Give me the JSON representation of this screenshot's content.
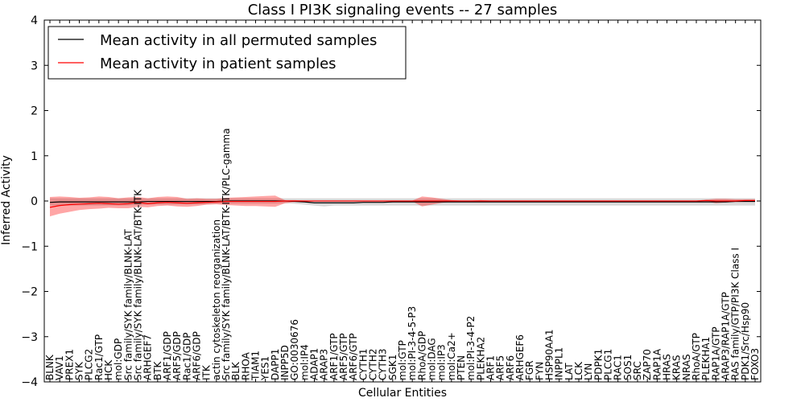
{
  "chart_data": {
    "type": "line",
    "title": "Class I PI3K signaling events -- 27 samples",
    "xlabel": "Cellular Entities",
    "ylabel": "Inferred Activity",
    "ylim": [
      -4,
      4
    ],
    "yticks": [
      -4,
      -3,
      -2,
      -1,
      0,
      1,
      2,
      3,
      4
    ],
    "ytick_labels": [
      "−4",
      "−3",
      "−2",
      "−1",
      "0",
      "1",
      "2",
      "3",
      "4"
    ],
    "legend_position": "top-left",
    "categories": [
      "BLNK",
      "VAV1",
      "PREX1",
      "SYK",
      "PLCG2",
      "Rac1/GTP",
      "HCK",
      "mol:GDP",
      "Src family/SYK family/BLNK-LAT",
      "Src family/SYK family/BLNK-LAT/BTK-ITK",
      "ARHGEF7",
      "BTK",
      "ARF1/GDP",
      "ARF5/GDP",
      "Rac1/GDP",
      "ARF6/GDP",
      "ITK",
      "actin cytoskeleton reorganization",
      "Src family/SYK family/BLNK-LAT/BTK-ITK/PLC-gamma",
      "BLK",
      "RHOA",
      "TIAM1",
      "YES1",
      "DAPP1",
      "INPP5D",
      "GO:0030676",
      "mol:IP4",
      "ADAP1",
      "ARAP3",
      "ARF1/GTP",
      "ARF5/GTP",
      "ARF6/GTP",
      "CYTH1",
      "CYTH2",
      "CYTH3",
      "SGK1",
      "mol:GTP",
      "mol:PI-3-4-5-P3",
      "RhoA/GDP",
      "mol:DAG",
      "mol:IP3",
      "mol:Ca2+",
      "PTEN",
      "mol:PI-3-4-P2",
      "PLEKHA2",
      "ARF1",
      "ARF5",
      "ARF6",
      "ARHGEF6",
      "FGR",
      "FYN",
      "HSP90AA1",
      "INPPL1",
      "LAT",
      "LCK",
      "LYN",
      "PDPK1",
      "PLCG1",
      "RAC1",
      "SOS1",
      "SRC",
      "ZAP70",
      "RAP1A",
      "HRAS",
      "KRAS",
      "NRAS",
      "RhoA/GTP",
      "PLEKHA1",
      "RAP1A/GTP",
      "ARAP3/RAP1A/GTP",
      "RAS family/GTP/PI3K Class I",
      "PDK1/Src/Hsp90",
      "FOXO3"
    ],
    "series": [
      {
        "name": "Mean activity in all permuted samples",
        "color": "#000000",
        "values": [
          -0.03,
          -0.02,
          -0.02,
          -0.02,
          -0.02,
          -0.02,
          -0.02,
          -0.02,
          -0.02,
          -0.02,
          -0.01,
          -0.01,
          -0.01,
          -0.01,
          -0.01,
          -0.01,
          -0.01,
          -0.01,
          0.0,
          0.0,
          0.0,
          0.0,
          0.0,
          0.0,
          0.0,
          -0.01,
          -0.02,
          -0.04,
          -0.04,
          -0.04,
          -0.04,
          -0.04,
          -0.03,
          -0.03,
          -0.03,
          -0.02,
          -0.02,
          -0.02,
          -0.02,
          -0.02,
          -0.02,
          -0.02,
          -0.02,
          -0.02,
          -0.02,
          -0.02,
          -0.02,
          -0.02,
          -0.02,
          -0.02,
          -0.02,
          -0.02,
          -0.02,
          -0.02,
          -0.02,
          -0.02,
          -0.02,
          -0.02,
          -0.02,
          -0.02,
          -0.02,
          -0.02,
          -0.02,
          -0.02,
          -0.02,
          -0.02,
          -0.02,
          -0.02,
          -0.02,
          -0.02,
          -0.01,
          -0.01,
          -0.01
        ],
        "band_lower": [
          -0.1,
          -0.1,
          -0.1,
          -0.1,
          -0.1,
          -0.1,
          -0.1,
          -0.1,
          -0.1,
          -0.09,
          -0.08,
          -0.08,
          -0.08,
          -0.08,
          -0.08,
          -0.08,
          -0.07,
          -0.06,
          -0.06,
          -0.06,
          -0.06,
          -0.06,
          -0.06,
          -0.06,
          -0.05,
          -0.06,
          -0.08,
          -0.1,
          -0.12,
          -0.1,
          -0.1,
          -0.1,
          -0.1,
          -0.1,
          -0.1,
          -0.1,
          -0.1,
          -0.1,
          -0.1,
          -0.1,
          -0.1,
          -0.1,
          -0.1,
          -0.1,
          -0.1,
          -0.1,
          -0.1,
          -0.1,
          -0.1,
          -0.1,
          -0.1,
          -0.1,
          -0.1,
          -0.1,
          -0.1,
          -0.1,
          -0.1,
          -0.1,
          -0.1,
          -0.1,
          -0.1,
          -0.1,
          -0.1,
          -0.1,
          -0.1,
          -0.1,
          -0.1,
          -0.1,
          -0.1,
          -0.1,
          -0.1,
          -0.1,
          -0.1
        ],
        "band_upper": [
          0.06,
          0.06,
          0.06,
          0.06,
          0.06,
          0.06,
          0.06,
          0.06,
          0.06,
          0.06,
          0.06,
          0.06,
          0.06,
          0.06,
          0.06,
          0.06,
          0.06,
          0.06,
          0.06,
          0.06,
          0.06,
          0.06,
          0.06,
          0.06,
          0.06,
          0.06,
          0.06,
          0.06,
          0.06,
          0.06,
          0.06,
          0.06,
          0.06,
          0.06,
          0.06,
          0.06,
          0.06,
          0.06,
          0.06,
          0.06,
          0.06,
          0.06,
          0.06,
          0.06,
          0.06,
          0.06,
          0.06,
          0.06,
          0.06,
          0.06,
          0.06,
          0.06,
          0.06,
          0.06,
          0.06,
          0.06,
          0.06,
          0.06,
          0.06,
          0.06,
          0.06,
          0.06,
          0.06,
          0.06,
          0.06,
          0.06,
          0.06,
          0.06,
          0.06,
          0.06,
          0.06,
          0.06,
          0.06
        ]
      },
      {
        "name": "Mean activity in patient samples",
        "color": "#ff0000",
        "values": [
          -0.14,
          -0.1,
          -0.08,
          -0.07,
          -0.06,
          -0.05,
          -0.06,
          -0.07,
          -0.06,
          -0.03,
          -0.06,
          -0.04,
          -0.03,
          -0.04,
          -0.05,
          -0.04,
          -0.03,
          -0.02,
          -0.01,
          -0.01,
          -0.01,
          -0.01,
          -0.01,
          -0.01,
          0.0,
          0.0,
          0.0,
          0.0,
          0.0,
          0.0,
          0.0,
          0.0,
          0.0,
          0.0,
          0.0,
          0.0,
          0.0,
          0.0,
          0.0,
          0.0,
          0.0,
          0.0,
          0.0,
          0.0,
          0.0,
          0.0,
          0.0,
          0.0,
          0.0,
          0.0,
          0.0,
          0.0,
          0.0,
          0.0,
          0.0,
          0.0,
          0.0,
          0.0,
          0.0,
          0.0,
          0.0,
          0.0,
          0.0,
          0.0,
          0.0,
          0.0,
          0.0,
          0.01,
          0.0,
          0.0,
          0.0,
          0.01,
          0.01
        ],
        "band_lower": [
          -0.34,
          -0.28,
          -0.24,
          -0.2,
          -0.18,
          -0.17,
          -0.15,
          -0.16,
          -0.16,
          -0.13,
          -0.14,
          -0.11,
          -0.1,
          -0.12,
          -0.13,
          -0.11,
          -0.08,
          -0.07,
          -0.09,
          -0.1,
          -0.11,
          -0.11,
          -0.12,
          -0.13,
          -0.05,
          -0.02,
          -0.02,
          -0.01,
          -0.01,
          -0.01,
          -0.01,
          -0.01,
          -0.01,
          -0.01,
          -0.01,
          -0.01,
          -0.01,
          -0.01,
          -0.12,
          -0.08,
          -0.04,
          -0.02,
          -0.01,
          -0.01,
          -0.01,
          -0.01,
          -0.01,
          -0.01,
          -0.01,
          -0.01,
          -0.01,
          -0.01,
          -0.01,
          -0.01,
          -0.01,
          -0.01,
          -0.01,
          -0.01,
          -0.01,
          -0.01,
          -0.01,
          -0.01,
          -0.01,
          -0.01,
          -0.01,
          -0.01,
          -0.01,
          -0.01,
          -0.05,
          -0.03,
          -0.02,
          -0.02,
          -0.02
        ],
        "band_upper": [
          0.09,
          0.1,
          0.09,
          0.07,
          0.08,
          0.1,
          0.09,
          0.06,
          0.08,
          0.09,
          0.06,
          0.09,
          0.1,
          0.09,
          0.05,
          0.06,
          0.05,
          0.05,
          0.07,
          0.08,
          0.09,
          0.1,
          0.11,
          0.12,
          0.02,
          0.02,
          0.01,
          0.01,
          0.01,
          0.01,
          0.01,
          0.01,
          0.01,
          0.01,
          0.01,
          0.01,
          0.01,
          0.01,
          0.1,
          0.08,
          0.05,
          0.02,
          0.01,
          0.01,
          0.02,
          0.01,
          0.01,
          0.01,
          0.01,
          0.01,
          0.01,
          0.01,
          0.01,
          0.01,
          0.01,
          0.01,
          0.01,
          0.01,
          0.01,
          0.01,
          0.01,
          0.01,
          0.01,
          0.01,
          0.01,
          0.01,
          0.01,
          0.03,
          0.05,
          0.05,
          0.04,
          0.04,
          0.04
        ]
      }
    ]
  }
}
